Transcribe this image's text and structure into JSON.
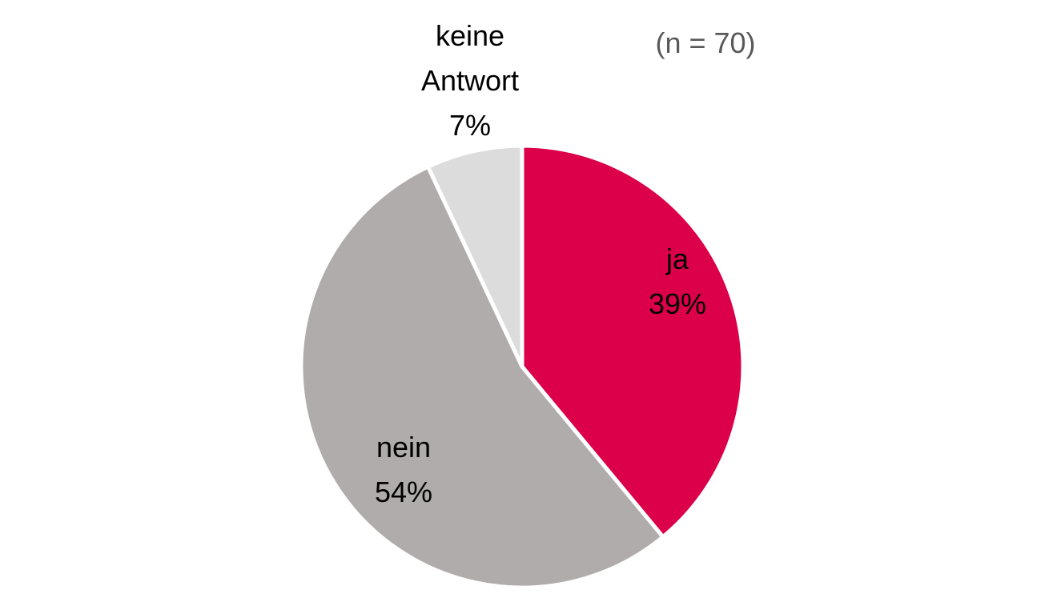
{
  "chart_data": {
    "type": "pie",
    "title": "",
    "annotation": "(n = 70)",
    "slices": [
      {
        "label": "ja",
        "value": 39,
        "value_label": "39%",
        "color": "#dc004b"
      },
      {
        "label": "nein",
        "value": 54,
        "value_label": "54%",
        "color": "#b0acab"
      },
      {
        "label": "keine Antwort",
        "label_lines": [
          "keine",
          "Antwort"
        ],
        "value": 7,
        "value_label": "7%",
        "color": "#dcdcdc"
      }
    ],
    "start_angle_deg": 0,
    "direction": "clockwise",
    "legend": "none",
    "label_text_color": "#000000",
    "annotation_color": "#595959"
  }
}
